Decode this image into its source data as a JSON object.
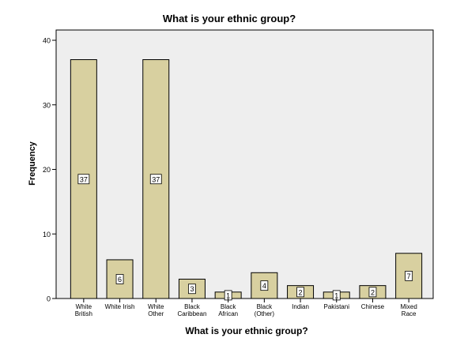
{
  "chart_data": {
    "type": "bar",
    "title": "What is your ethnic group?",
    "xlabel": "What is your ethnic group?",
    "ylabel": "Frequency",
    "categories": [
      [
        "White",
        "British"
      ],
      [
        "White Irish"
      ],
      [
        "White",
        "Other"
      ],
      [
        "Black",
        "Caribbean"
      ],
      [
        "Black",
        "African"
      ],
      [
        "Black",
        "(Other)"
      ],
      [
        "Indian"
      ],
      [
        "Pakistani"
      ],
      [
        "Chinese"
      ],
      [
        "Mixed",
        "Race"
      ]
    ],
    "values": [
      37,
      6,
      37,
      3,
      1,
      4,
      2,
      1,
      2,
      7
    ],
    "value_labels": [
      "37",
      "6",
      "37",
      "3",
      "1",
      "4",
      "2",
      "1",
      "2",
      "7"
    ],
    "yticks": [
      0,
      10,
      20,
      30,
      40
    ],
    "ylim": [
      0,
      42
    ],
    "grid": false,
    "colors": {
      "plot_background": "#EEEEEE",
      "bar_fill": "#D8D0A0",
      "bar_stroke": "#000000",
      "label_box_fill": "#FFFFFF"
    }
  }
}
